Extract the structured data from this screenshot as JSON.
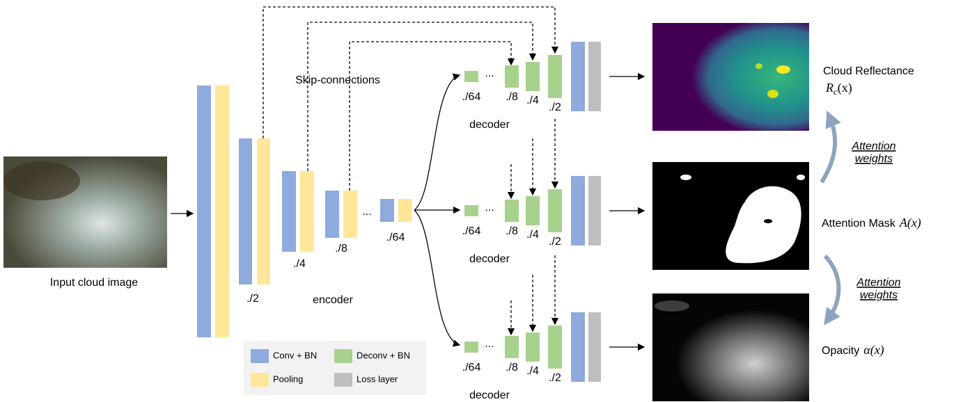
{
  "input": {
    "label": "Input cloud image"
  },
  "encoder": {
    "label": "encoder",
    "scales": [
      "./2",
      "./4",
      "./8",
      "./64"
    ],
    "ellipsis": "..."
  },
  "skip_label": "Skip-connections",
  "decoders": [
    {
      "label": "decoder",
      "scales": [
        "./64",
        "./8",
        "./4",
        "./2"
      ],
      "ellipsis": "..."
    },
    {
      "label": "decoder",
      "scales": [
        "./64",
        "./8",
        "./4",
        "./2"
      ],
      "ellipsis": "..."
    },
    {
      "label": "decoder",
      "scales": [
        "./64",
        "./8",
        "./4",
        "./2"
      ],
      "ellipsis": "..."
    }
  ],
  "outputs": [
    {
      "name": "Cloud  Reflectance",
      "symbol": "R",
      "subscript": "c",
      "argument": "(x)"
    },
    {
      "name": "Attention Mask",
      "symbol": "A",
      "argument": "(x)"
    },
    {
      "name": "Opacity",
      "symbol": "α",
      "argument": "(x)"
    }
  ],
  "attention_labels": [
    {
      "lines": [
        "Attention",
        "weights"
      ]
    },
    {
      "lines": [
        "Attention",
        "weights"
      ]
    }
  ],
  "legend": [
    "Conv + BN",
    "Deconv + BN",
    "Pooling",
    "Loss layer"
  ]
}
